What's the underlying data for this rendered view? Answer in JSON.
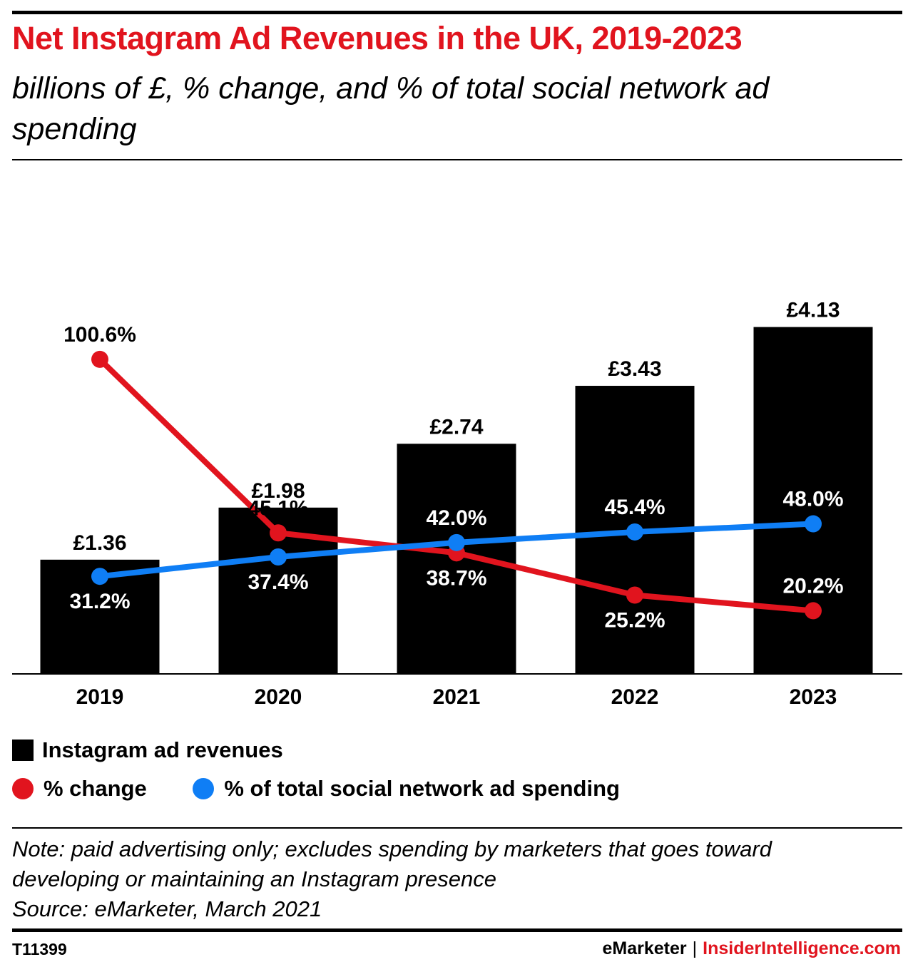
{
  "title": "Net Instagram Ad Revenues in the UK, 2019-2023",
  "subtitle": "billions of £, % change, and % of total social network ad spending",
  "chart_data": {
    "type": "bar",
    "categories": [
      "2019",
      "2020",
      "2021",
      "2022",
      "2023"
    ],
    "series": [
      {
        "name": "Instagram ad revenues",
        "kind": "bar",
        "values": [
          1.36,
          1.98,
          2.74,
          3.43,
          4.13
        ],
        "labels": [
          "£1.36",
          "£1.98",
          "£2.74",
          "£3.43",
          "£4.13"
        ]
      },
      {
        "name": "% change",
        "kind": "line",
        "values": [
          100.6,
          45.1,
          38.7,
          25.2,
          20.2
        ],
        "labels": [
          "100.6%",
          "45.1%",
          "38.7%",
          "25.2%",
          "20.2%"
        ]
      },
      {
        "name": "% of total social network ad spending",
        "kind": "line",
        "values": [
          31.2,
          37.4,
          42.0,
          45.4,
          48.0
        ],
        "labels": [
          "31.2%",
          "37.4%",
          "42.0%",
          "45.4%",
          "48.0%"
        ]
      }
    ],
    "bar_range": [
      0,
      4.5
    ],
    "line_range": [
      0,
      130
    ],
    "grid": false,
    "legend_position": "bottom"
  },
  "colors": {
    "bars": "#000000",
    "change": "#e1141e",
    "share": "#0f7ef5",
    "title": "#e1141e"
  },
  "legend": {
    "revenues": "Instagram ad revenues",
    "change": "% change",
    "share": "% of total social network ad spending"
  },
  "notes": {
    "line1": "Note: paid advertising only; excludes spending by marketers that goes toward",
    "line2": "developing or maintaining an Instagram presence",
    "source": "Source: eMarketer, March 2021"
  },
  "footer": {
    "id": "T11399",
    "brand1": "eMarketer",
    "separator": "|",
    "brand2": "InsiderIntelligence.com"
  }
}
